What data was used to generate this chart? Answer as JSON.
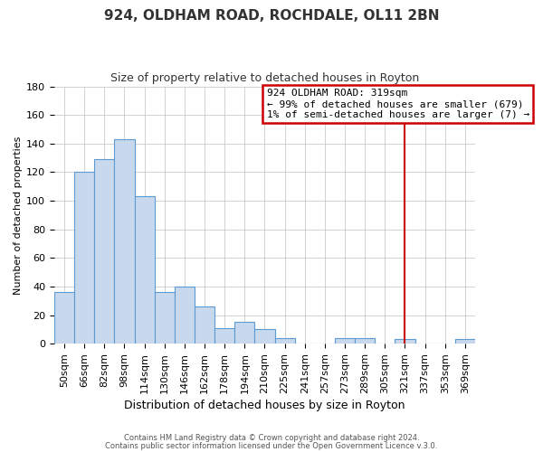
{
  "title": "924, OLDHAM ROAD, ROCHDALE, OL11 2BN",
  "subtitle": "Size of property relative to detached houses in Royton",
  "xlabel": "Distribution of detached houses by size in Royton",
  "ylabel": "Number of detached properties",
  "bar_labels": [
    "50sqm",
    "66sqm",
    "82sqm",
    "98sqm",
    "114sqm",
    "130sqm",
    "146sqm",
    "162sqm",
    "178sqm",
    "194sqm",
    "210sqm",
    "225sqm",
    "241sqm",
    "257sqm",
    "273sqm",
    "289sqm",
    "305sqm",
    "321sqm",
    "337sqm",
    "353sqm",
    "369sqm"
  ],
  "bar_heights": [
    36,
    120,
    129,
    143,
    103,
    36,
    40,
    26,
    11,
    15,
    10,
    4,
    0,
    0,
    4,
    4,
    0,
    3,
    0,
    0,
    3
  ],
  "bar_color": "#c8d9ed",
  "bar_edge_color": "#5b9bd5",
  "vline_x": 17,
  "vline_color": "#cc0000",
  "annotation_title": "924 OLDHAM ROAD: 319sqm",
  "annotation_line1": "← 99% of detached houses are smaller (679)",
  "annotation_line2": "1% of semi-detached houses are larger (7) →",
  "annotation_box_color": "#cc0000",
  "ylim": [
    0,
    180
  ],
  "yticks": [
    0,
    20,
    40,
    60,
    80,
    100,
    120,
    140,
    160,
    180
  ],
  "footer1": "Contains HM Land Registry data © Crown copyright and database right 2024.",
  "footer2": "Contains public sector information licensed under the Open Government Licence v.3.0.",
  "bg_color": "#ffffff",
  "grid_color": "#c0c0c0",
  "title_fontsize": 11,
  "subtitle_fontsize": 9,
  "ylabel_fontsize": 8,
  "xlabel_fontsize": 9,
  "tick_fontsize": 8,
  "annotation_fontsize": 8
}
